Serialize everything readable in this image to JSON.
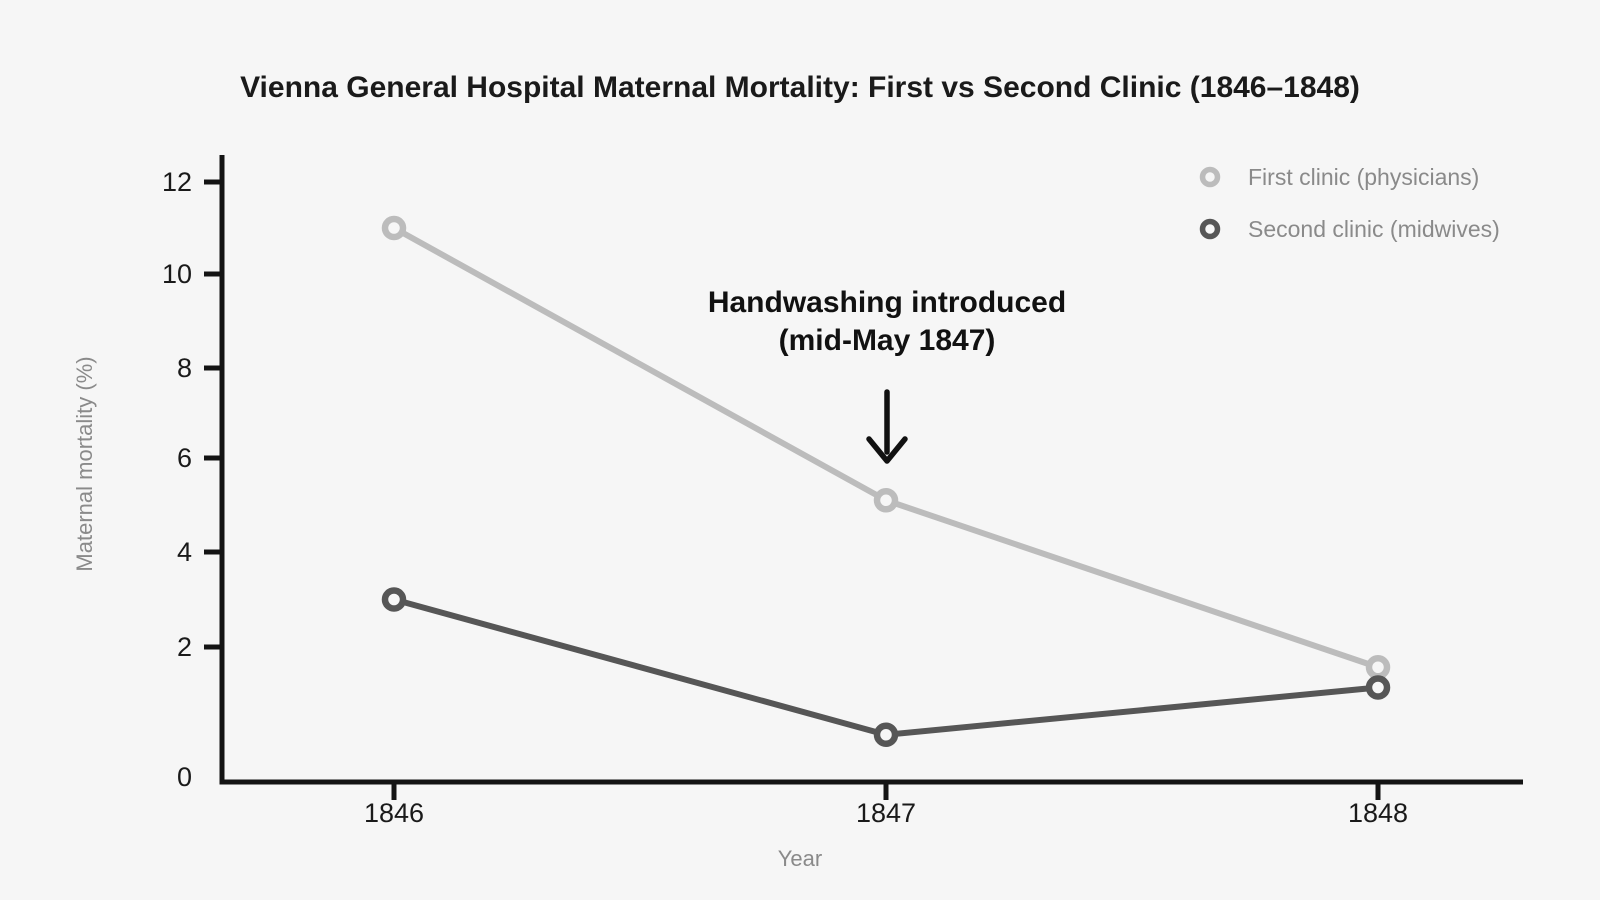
{
  "colors": {
    "background": "#f6f6f6",
    "axis": "#141414",
    "title_text": "#1a1a1a",
    "annotation_text": "#111111",
    "muted_text": "#8a8a8a"
  },
  "chart_data": {
    "type": "line",
    "title": "Vienna General Hospital Maternal Mortality: First vs Second Clinic (1846–1848)",
    "xlabel": "Year",
    "ylabel": "Maternal mortality (%)",
    "categories": [
      "1846",
      "1847",
      "1848"
    ],
    "series": [
      {
        "name": "First clinic (physicians)",
        "values": [
          11.0,
          5.1,
          1.7
        ],
        "color": "#bcbcbc"
      },
      {
        "name": "Second clinic (midwives)",
        "values": [
          3.0,
          0.7,
          1.4
        ],
        "color": "#565656"
      }
    ],
    "y_ticks": [
      0,
      2,
      4,
      6,
      8,
      10,
      12
    ],
    "y_tick_labels": [
      "0",
      "2",
      "4",
      "6",
      "8",
      "10",
      "12"
    ],
    "ylim": [
      0,
      12.5
    ],
    "grid": false,
    "marker": "open-circle",
    "legend_position": "top-right",
    "annotation": {
      "text_line1": "Handwashing introduced",
      "text_line2": "(mid-May 1847)",
      "arrow": "down",
      "points_at": "First clinic value for 1847"
    }
  }
}
